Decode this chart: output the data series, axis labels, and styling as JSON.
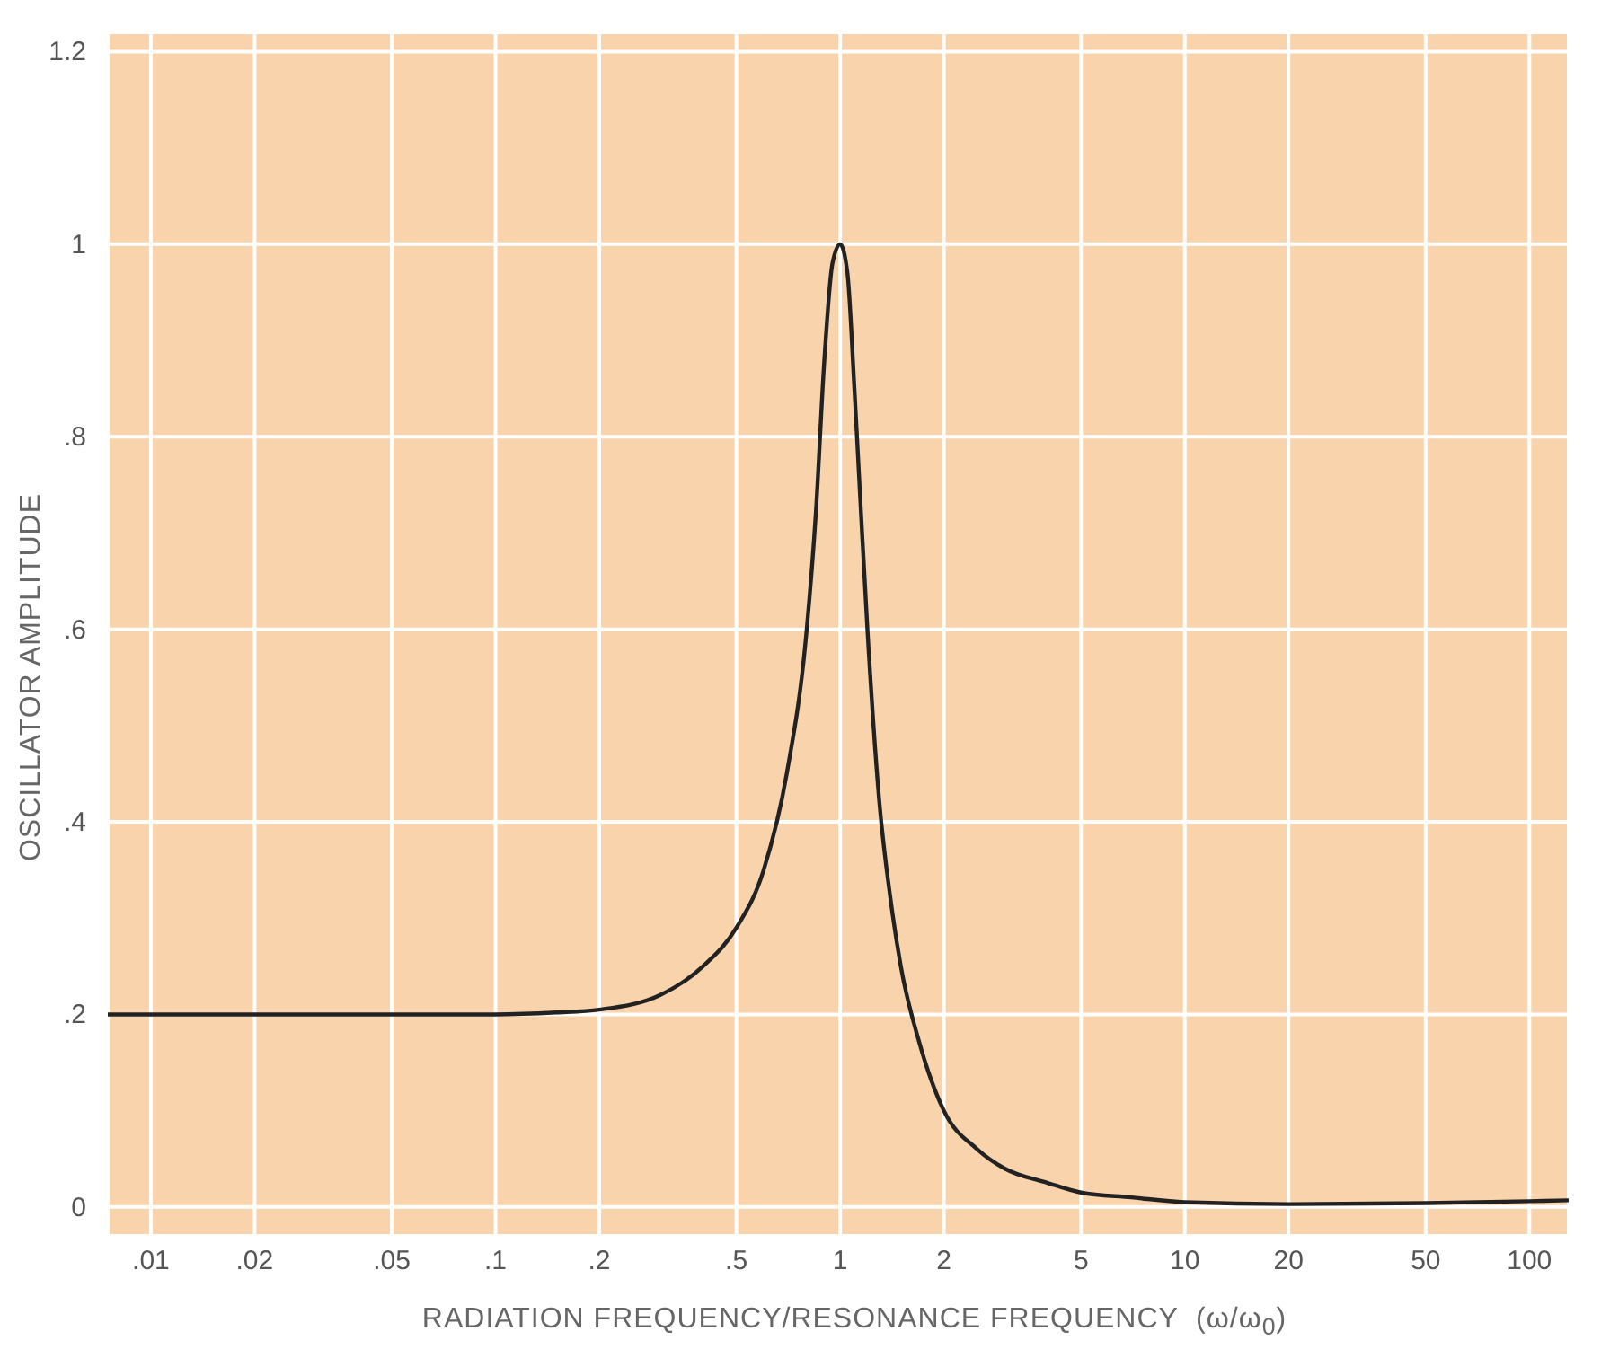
{
  "chart_data": {
    "type": "line",
    "xlabel": "RADIATION FREQUENCY/RESONANCE FREQUENCY  (ω/ω$_{0}$)",
    "ylabel": "OSCILLATOR AMPLITUDE",
    "log": "x",
    "grid": true,
    "xlim": [
      0.0075,
      130
    ],
    "ylim": [
      -0.03,
      1.22
    ],
    "xticks": [
      {
        "value": 0.01,
        "label": ".01"
      },
      {
        "value": 0.02,
        "label": ".02"
      },
      {
        "value": 0.05,
        "label": ".05"
      },
      {
        "value": 0.1,
        "label": ".1"
      },
      {
        "value": 0.2,
        "label": ".2"
      },
      {
        "value": 0.5,
        "label": ".5"
      },
      1,
      2,
      5,
      10,
      20,
      50,
      100
    ],
    "yticks": [
      0,
      {
        "value": 0.2,
        "label": ".2"
      },
      {
        "value": 0.4,
        "label": ".4"
      },
      {
        "value": 0.6,
        "label": ".6"
      },
      {
        "value": 0.8,
        "label": ".8"
      },
      1,
      1.2
    ],
    "x": [
      0.0075,
      0.01,
      0.05,
      0.1,
      0.15,
      0.2,
      0.3,
      0.4,
      0.5,
      0.6,
      0.7,
      0.8,
      0.85,
      0.9,
      0.95,
      1,
      1.05,
      1.1,
      1.15,
      1.2,
      1.3,
      1.4,
      1.5,
      1.7,
      2,
      2.5,
      3,
      4,
      5,
      7,
      10,
      20,
      50,
      100,
      130
    ],
    "series": [
      {
        "color": "#222222",
        "values": [
          0.2,
          0.2,
          0.2,
          0.2,
          0.202,
          0.205,
          0.22,
          0.25,
          0.29,
          0.35,
          0.45,
          0.6,
          0.72,
          0.88,
          0.98,
          1.0,
          0.97,
          0.85,
          0.72,
          0.6,
          0.42,
          0.32,
          0.25,
          0.17,
          0.1,
          0.06,
          0.04,
          0.025,
          0.015,
          0.01,
          0.005,
          0.003,
          0.004,
          0.006,
          0.007
        ]
      }
    ]
  }
}
